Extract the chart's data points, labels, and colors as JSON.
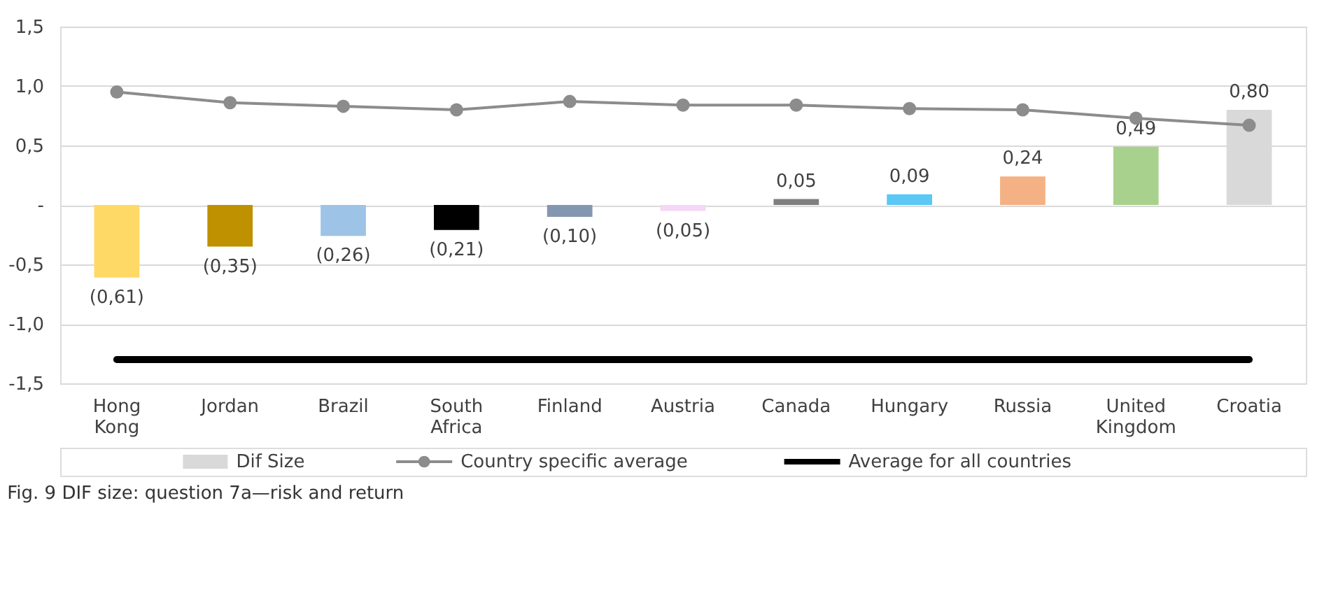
{
  "chart_data": {
    "type": "bar",
    "title": "Fig. 9 DIF size: question 7a—risk and return",
    "categories": [
      "Hong Kong",
      "Jordan",
      "Brazil",
      "South Africa",
      "Finland",
      "Austria",
      "Canada",
      "Hungary",
      "Russia",
      "United Kingdom",
      "Croatia"
    ],
    "series": [
      {
        "name": "Dif Size",
        "color": "#d9d9d9",
        "colors": [
          "#ffd966",
          "#bf9000",
          "#9dc3e6",
          "#000000",
          "#8497b0",
          "#f4d7f4",
          "#7f7f7f",
          "#5bc8f5",
          "#f4b183",
          "#a9d18e",
          "#d9d9d9"
        ],
        "values": [
          -0.61,
          -0.35,
          -0.26,
          -0.21,
          -0.1,
          -0.05,
          0.05,
          0.09,
          0.24,
          0.49,
          0.8
        ],
        "value_labels": [
          "(0,61)",
          "(0,35)",
          "(0,26)",
          "(0,21)",
          "(0,10)",
          "(0,05)",
          "0,05",
          "0,09",
          "0,24",
          "0,49",
          "0,80"
        ]
      },
      {
        "name": "Country specific average",
        "type": "line",
        "color": "#8c8c8c",
        "marker": "circle",
        "values": [
          0.95,
          0.86,
          0.83,
          0.8,
          0.87,
          0.84,
          0.84,
          0.81,
          0.8,
          0.73,
          0.67
        ]
      },
      {
        "name": "Average for all countries",
        "type": "line",
        "color": "#000000",
        "marker": "none",
        "values": [
          -1.3,
          -1.3,
          -1.3,
          -1.3,
          -1.3,
          -1.3,
          -1.3,
          -1.3,
          -1.3,
          -1.3,
          -1.3
        ]
      }
    ],
    "ylim": [
      -1.5,
      1.5
    ],
    "yticks": [
      {
        "value": -1.5,
        "label": "-1,5"
      },
      {
        "value": -1.0,
        "label": "-1,0"
      },
      {
        "value": -0.5,
        "label": "-0,5"
      },
      {
        "value": 0,
        "label": "-"
      },
      {
        "value": 0.5,
        "label": "0,5"
      },
      {
        "value": 1.0,
        "label": "1,0"
      },
      {
        "value": 1.5,
        "label": "1,5"
      }
    ],
    "grid": "y",
    "legend": "bottom"
  }
}
